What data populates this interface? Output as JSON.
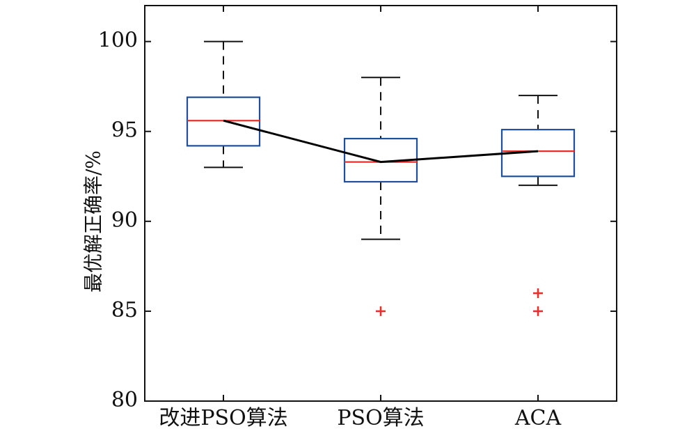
{
  "chart_data": {
    "type": "box",
    "title": "",
    "xlabel": "",
    "ylabel": "最优解正确率/%",
    "ylim": [
      80,
      102
    ],
    "yticks": [
      80,
      85,
      90,
      95,
      100
    ],
    "grid": false,
    "legend": "none",
    "categories": [
      "改进PSO算法",
      "PSO算法",
      "ACA"
    ],
    "boxes": [
      {
        "category": "改进PSO算法",
        "whisker_low": 93,
        "q1": 94.2,
        "median": 95.6,
        "q3": 96.9,
        "whisker_high": 100,
        "outliers": []
      },
      {
        "category": "PSO算法",
        "whisker_low": 89,
        "q1": 92.2,
        "median": 93.3,
        "q3": 94.6,
        "whisker_high": 98,
        "outliers": [
          85
        ]
      },
      {
        "category": "ACA",
        "whisker_low": 92,
        "q1": 92.5,
        "median": 93.9,
        "q3": 95.1,
        "whisker_high": 97,
        "outliers": [
          86,
          85
        ]
      }
    ],
    "median_line": true,
    "colors": {
      "box": "#1f4e9c",
      "median": "#e8302b",
      "whisker": "#111111",
      "outlier": "#e8302b",
      "trend": "#000000"
    }
  }
}
